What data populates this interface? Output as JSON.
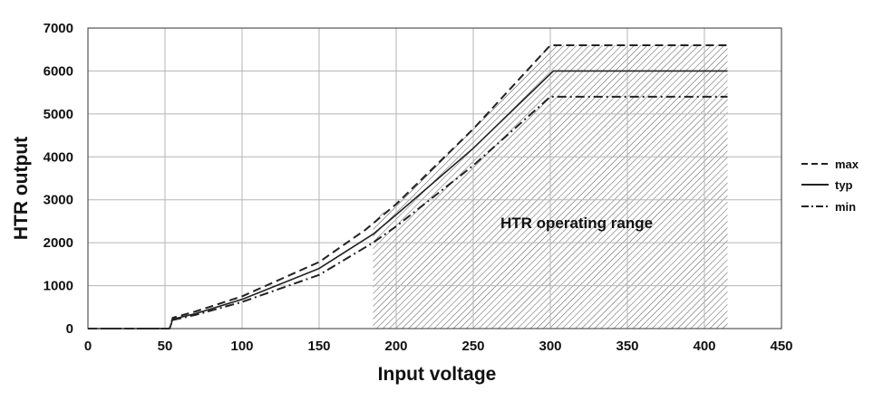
{
  "chart_data": {
    "type": "line",
    "title": "",
    "xlabel": "Input voltage",
    "ylabel": "HTR output",
    "xlim": [
      0,
      450
    ],
    "ylim": [
      0,
      7000
    ],
    "x_ticks": [
      0,
      50,
      100,
      150,
      200,
      250,
      300,
      350,
      400,
      450
    ],
    "y_ticks": [
      0,
      1000,
      2000,
      3000,
      4000,
      5000,
      6000,
      7000
    ],
    "x_tick_labels": [
      "0",
      "50",
      "100",
      "150",
      "200",
      "250",
      "300",
      "350",
      "400",
      "450"
    ],
    "y_tick_labels": [
      "0",
      "1000",
      "2000",
      "3000",
      "4000",
      "5000",
      "6000",
      "7000"
    ],
    "grid": true,
    "legend_position": "right",
    "series": [
      {
        "name": "max",
        "style": "dashed",
        "color": "#222222",
        "points": [
          [
            0,
            0
          ],
          [
            53,
            0
          ],
          [
            55,
            250
          ],
          [
            70,
            400
          ],
          [
            100,
            750
          ],
          [
            150,
            1550
          ],
          [
            180,
            2300
          ],
          [
            200,
            2900
          ],
          [
            250,
            4650
          ],
          [
            300,
            6600
          ],
          [
            415,
            6600
          ]
        ]
      },
      {
        "name": "typ",
        "style": "solid",
        "color": "#222222",
        "points": [
          [
            0,
            0
          ],
          [
            53,
            0
          ],
          [
            55,
            220
          ],
          [
            70,
            350
          ],
          [
            100,
            680
          ],
          [
            150,
            1400
          ],
          [
            185,
            2200
          ],
          [
            200,
            2650
          ],
          [
            250,
            4200
          ],
          [
            302,
            6000
          ],
          [
            415,
            6000
          ]
        ]
      },
      {
        "name": "min",
        "style": "dashdot",
        "color": "#222222",
        "points": [
          [
            0,
            0
          ],
          [
            53,
            0
          ],
          [
            55,
            200
          ],
          [
            70,
            320
          ],
          [
            100,
            620
          ],
          [
            150,
            1250
          ],
          [
            185,
            2000
          ],
          [
            200,
            2380
          ],
          [
            250,
            3800
          ],
          [
            300,
            5400
          ],
          [
            415,
            5400
          ]
        ]
      }
    ],
    "region": {
      "label": "HTR operating range",
      "pattern": "diagonal-hatch",
      "boundary": [
        [
          185,
          0
        ],
        [
          185,
          2550
        ],
        [
          200,
          2900
        ],
        [
          250,
          4650
        ],
        [
          300,
          6600
        ],
        [
          415,
          6600
        ],
        [
          415,
          0
        ]
      ]
    }
  }
}
